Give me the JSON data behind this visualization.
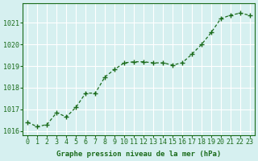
{
  "x": [
    0,
    1,
    2,
    3,
    4,
    5,
    6,
    7,
    8,
    9,
    10,
    11,
    12,
    13,
    14,
    15,
    16,
    17,
    18,
    19,
    20,
    21,
    22,
    23
  ],
  "y": [
    1016.4,
    1016.2,
    1016.3,
    1016.85,
    1016.65,
    1017.1,
    1017.75,
    1017.75,
    1018.5,
    1018.85,
    1019.15,
    1019.2,
    1019.2,
    1019.15,
    1019.15,
    1019.05,
    1019.15,
    1019.55,
    1020.0,
    1020.55,
    1021.2,
    1021.35,
    1021.45,
    1021.35
  ],
  "line_color": "#1a6b1a",
  "marker": "+",
  "bg_color": "#d6f0f0",
  "grid_color": "#ffffff",
  "ylabel_ticks": [
    1016,
    1017,
    1018,
    1019,
    1020,
    1021
  ],
  "xtick_labels": [
    "0",
    "1",
    "2",
    "3",
    "4",
    "5",
    "6",
    "7",
    "8",
    "9",
    "10",
    "11",
    "12",
    "13",
    "14",
    "15",
    "16",
    "17",
    "18",
    "19",
    "20",
    "21",
    "22",
    "23"
  ],
  "xlabel": "Graphe pression niveau de la mer (hPa)",
  "xlabel_color": "#1a6b1a",
  "tick_color": "#1a6b1a",
  "ylim": [
    1015.8,
    1021.9
  ],
  "xlim": [
    -0.5,
    23.5
  ]
}
